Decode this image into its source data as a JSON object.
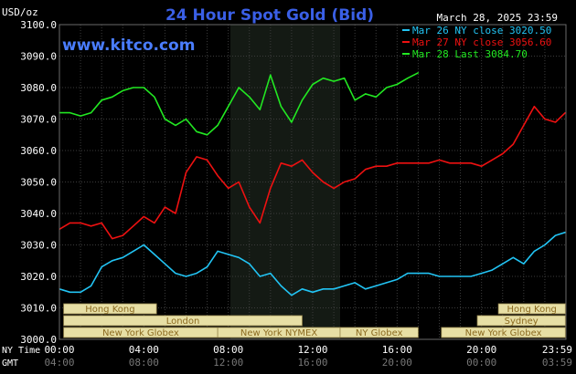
{
  "title": "24 Hour Spot Gold (Bid)",
  "unit_label": "USD/oz",
  "date_label": "March 28, 2025 23:59",
  "watermark": "www.kitco.com",
  "colors": {
    "background": "#000000",
    "night_band": "#141a14",
    "grid": "#3c3c3c",
    "title": "#3a5fe6",
    "watermark": "#4a7dff",
    "series_mar26": "#22c4f4",
    "series_mar27": "#ee1111",
    "series_mar28": "#22e822",
    "session_fill": "#e7dfa5",
    "session_text": "#8b6a20"
  },
  "sessions": [
    {
      "label": "Hong Kong",
      "row": 0,
      "start": 0.2,
      "end": 4.6
    },
    {
      "label": "London",
      "row": 1,
      "start": 0.2,
      "end": 11.5
    },
    {
      "label": "New York Globex",
      "row": 2,
      "start": 0.2,
      "end": 7.5
    },
    {
      "label": "New York NYMEX",
      "row": 2,
      "start": 7.5,
      "end": 13.3
    },
    {
      "label": "NY Globex",
      "row": 2,
      "start": 13.3,
      "end": 17.0
    },
    {
      "label": "Hong Kong",
      "row": 0,
      "start": 20.8,
      "end": 23.97
    },
    {
      "label": "Sydney",
      "row": 1,
      "start": 19.8,
      "end": 23.97
    },
    {
      "label": "New York Globex",
      "row": 2,
      "start": 18.1,
      "end": 23.97
    }
  ],
  "chart_data": {
    "type": "line",
    "title": "24 Hour Spot Gold (Bid)",
    "ylabel": "USD/oz",
    "xlabel": "",
    "ylim": [
      3000,
      3100
    ],
    "xlim": [
      0,
      24
    ],
    "y_ticks": [
      "3000.0",
      "3010.0",
      "3020.0",
      "3030.0",
      "3040.0",
      "3050.0",
      "3060.0",
      "3070.0",
      "3080.0",
      "3090.0",
      "3100.0"
    ],
    "x_ticks_ny": [
      "00:00",
      "04:00",
      "08:00",
      "12:00",
      "16:00",
      "20:00",
      "23:59"
    ],
    "x_ticks_gmt": [
      "04:00",
      "08:00",
      "12:00",
      "16:00",
      "20:00",
      "00:00",
      "03:59"
    ],
    "x_axis_ny_label": "NY Time",
    "x_axis_gmt_label": "GMT",
    "grid": true,
    "legend_position": "top-right",
    "night_shade_hours": [
      8.1,
      13.3
    ],
    "series": [
      {
        "name": "Mar 26 NY close 3020.50",
        "color": "#22c4f4",
        "x": [
          0,
          0.5,
          1,
          1.5,
          2,
          2.5,
          3,
          3.5,
          4,
          4.5,
          5,
          5.5,
          6,
          6.5,
          7,
          7.5,
          8,
          8.5,
          9,
          9.5,
          10,
          10.5,
          11,
          11.5,
          12,
          12.5,
          13,
          13.5,
          14,
          14.5,
          15,
          15.5,
          16,
          16.5,
          17,
          17.5,
          18,
          18.5,
          19,
          19.5,
          20,
          20.5,
          21,
          21.5,
          22,
          22.5,
          23,
          23.5,
          23.97
        ],
        "y": [
          3016,
          3015,
          3015,
          3017,
          3023,
          3025,
          3026,
          3028,
          3030,
          3027,
          3024,
          3021,
          3020,
          3021,
          3023,
          3028,
          3027,
          3026,
          3024,
          3020,
          3021,
          3017,
          3014,
          3016,
          3015,
          3016,
          3016,
          3017,
          3018,
          3016,
          3017,
          3018,
          3019,
          3021,
          3021,
          3021,
          3020,
          3020,
          3020,
          3020,
          3021,
          3022,
          3024,
          3026,
          3024,
          3028,
          3030,
          3033,
          3034
        ]
      },
      {
        "name": "Mar 27 NY close 3056.60",
        "color": "#ee1111",
        "x": [
          0,
          0.5,
          1,
          1.5,
          2,
          2.5,
          3,
          3.5,
          4,
          4.5,
          5,
          5.5,
          6,
          6.5,
          7,
          7.5,
          8,
          8.5,
          9,
          9.5,
          10,
          10.5,
          11,
          11.5,
          12,
          12.5,
          13,
          13.5,
          14,
          14.5,
          15,
          15.5,
          16,
          16.5,
          17,
          17.5,
          18,
          18.5,
          19,
          19.5,
          20,
          20.5,
          21,
          21.5,
          22,
          22.5,
          23,
          23.5,
          23.97
        ],
        "y": [
          3035,
          3037,
          3037,
          3036,
          3037,
          3032,
          3033,
          3036,
          3039,
          3037,
          3042,
          3040,
          3053,
          3058,
          3057,
          3052,
          3048,
          3050,
          3042,
          3037,
          3048,
          3056,
          3055,
          3057,
          3053,
          3050,
          3048,
          3050,
          3051,
          3054,
          3055,
          3055,
          3056,
          3056,
          3056,
          3056,
          3057,
          3056,
          3056,
          3056,
          3055,
          3057,
          3059,
          3062,
          3068,
          3074,
          3070,
          3069,
          3072
        ]
      },
      {
        "name": "Mar 28 Last 3084.70",
        "color": "#22e822",
        "x": [
          0,
          0.5,
          1,
          1.5,
          2,
          2.5,
          3,
          3.5,
          4,
          4.5,
          5,
          5.5,
          6,
          6.5,
          7,
          7.5,
          8,
          8.5,
          9,
          9.5,
          10,
          10.5,
          11,
          11.5,
          12,
          12.5,
          13,
          13.5,
          14,
          14.5,
          15,
          15.5,
          16,
          16.5,
          17
        ],
        "y": [
          3072,
          3072,
          3071,
          3072,
          3076,
          3077,
          3079,
          3080,
          3080,
          3077,
          3070,
          3068,
          3070,
          3066,
          3065,
          3068,
          3074,
          3080,
          3077,
          3073,
          3084,
          3074,
          3069,
          3076,
          3081,
          3083,
          3082,
          3083,
          3076,
          3078,
          3077,
          3080,
          3081,
          3083,
          3084.7
        ]
      }
    ]
  }
}
